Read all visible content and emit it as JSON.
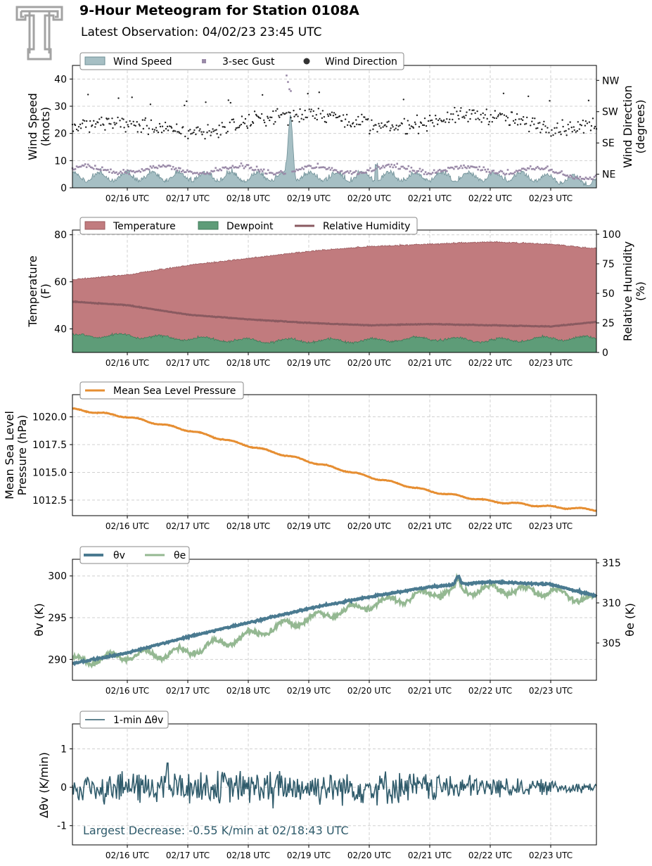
{
  "header": {
    "title": "9-Hour Meteogram for Station 0108A",
    "subtitle": "Latest Observation: 04/02/23 23:45 UTC"
  },
  "logo": {
    "icon": "texas-tech-double-t-logo-icon",
    "color": "#a9a9a9"
  },
  "x_ticks": [
    "02/16 UTC",
    "02/17 UTC",
    "02/18 UTC",
    "02/19 UTC",
    "02/20 UTC",
    "02/21 UTC",
    "02/22 UTC",
    "02/23 UTC"
  ],
  "chart_data": [
    {
      "type": "area",
      "panel": "wind",
      "legend": [
        "Wind Speed",
        "3-sec Gust",
        "Wind Direction"
      ],
      "ylabel": "Wind Speed\n(knots)",
      "ylabel_lines": [
        "Wind Speed",
        "(knots)"
      ],
      "y2label_lines": [
        "Wind Direction",
        "(degrees)"
      ],
      "ylim": [
        0,
        45
      ],
      "yticks": [
        "0",
        "10",
        "20",
        "30",
        "40"
      ],
      "y2ticks": [
        "NE",
        "SE",
        "SW",
        "NW"
      ],
      "colors": {
        "speed": "#a6bfc4",
        "speed_edge": "#6e8f96",
        "gust": "#9a8aa8",
        "direction": "#222222"
      },
      "series": [
        {
          "name": "Wind Speed",
          "summary": {
            "typical": [
              2,
              7
            ],
            "peak": 26,
            "peak_at": "02/18:40 UTC"
          }
        },
        {
          "name": "3-sec Gust",
          "summary": {
            "typical": [
              4,
              8
            ],
            "peak": 43
          }
        },
        {
          "name": "Wind Direction",
          "summary": {
            "range": [
              "NE",
              "NW"
            ],
            "typical": "SE-SW"
          }
        }
      ]
    },
    {
      "type": "area",
      "panel": "temperature",
      "legend": [
        "Temperature",
        "Dewpoint",
        "Relative Humidity"
      ],
      "ylabel_lines": [
        "Temperature",
        "(F)"
      ],
      "y2label_lines": [
        "Relative Humidity",
        "(%)"
      ],
      "ylim": [
        30,
        82
      ],
      "yticks": [
        "40",
        "60",
        "80"
      ],
      "y2ticks": [
        "0",
        "25",
        "50",
        "75",
        "100"
      ],
      "colors": {
        "temperature": "#c17b7e",
        "dewpoint": "#5e9c78",
        "rh": "#8a5a60"
      },
      "series": [
        {
          "name": "Temperature",
          "x": [
            "02/15",
            "02/16",
            "02/17",
            "02/18",
            "02/19",
            "02/20",
            "02/21",
            "02/22",
            "02/23",
            "02/24"
          ],
          "values": [
            61,
            63,
            67,
            70,
            73,
            75,
            76,
            77,
            76,
            74
          ]
        },
        {
          "name": "Dewpoint",
          "x": [
            "02/15",
            "02/16",
            "02/17",
            "02/18",
            "02/19",
            "02/20",
            "02/21",
            "02/22",
            "02/23",
            "02/24"
          ],
          "values": [
            37,
            37,
            36,
            35,
            35,
            35,
            36,
            35,
            36,
            36
          ]
        },
        {
          "name": "Relative Humidity",
          "x": [
            "02/15",
            "02/16",
            "02/17",
            "02/18",
            "02/19",
            "02/20",
            "02/21",
            "02/22",
            "02/23",
            "02/24"
          ],
          "values": [
            43,
            40,
            32,
            28,
            25,
            23,
            24,
            23,
            22,
            26
          ]
        }
      ]
    },
    {
      "type": "line",
      "panel": "pressure",
      "legend": [
        "Mean Sea Level Pressure"
      ],
      "ylabel_lines": [
        "Mean Sea Level",
        "Pressure (hPa)"
      ],
      "ylim": [
        1011.1,
        1022
      ],
      "yticks": [
        "1012.5",
        "1015.0",
        "1017.5",
        "1020.0"
      ],
      "color": "#e68e32",
      "series": [
        {
          "name": "Mean Sea Level Pressure",
          "x": [
            "02/15",
            "02/16",
            "02/17",
            "02/18",
            "02/19",
            "02/20",
            "02/21",
            "02/22",
            "02/23",
            "02/24"
          ],
          "values": [
            1020.7,
            1020.0,
            1018.8,
            1017.4,
            1016.0,
            1014.6,
            1013.3,
            1012.4,
            1011.9,
            1011.6
          ]
        }
      ]
    },
    {
      "type": "line",
      "panel": "theta",
      "legend": [
        "θv",
        "θe"
      ],
      "ylabel_lines": [
        "θv (K)"
      ],
      "y2label_lines": [
        "θe (K)"
      ],
      "ylim": [
        287.5,
        302
      ],
      "yticks": [
        "290",
        "295",
        "300"
      ],
      "y2ticks": [
        "305",
        "310",
        "315"
      ],
      "colors": {
        "theta_v": "#4a7a90",
        "theta_e": "#94b892"
      },
      "series": [
        {
          "name": "θv",
          "x": [
            "02/15",
            "02/16",
            "02/17",
            "02/18",
            "02/19",
            "02/20",
            "02/21",
            "02/22",
            "02/23",
            "02/24"
          ],
          "values": [
            289.5,
            290.8,
            292.7,
            294.4,
            296.1,
            297.5,
            298.7,
            299.3,
            299.0,
            297.5
          ]
        },
        {
          "name": "θe",
          "x": [
            "02/15",
            "02/16",
            "02/17",
            "02/18",
            "02/19",
            "02/20",
            "02/21",
            "02/22",
            "02/23",
            "02/24"
          ],
          "values": [
            289.8,
            290.4,
            290.9,
            292.9,
            294.9,
            296.5,
            297.9,
            298.4,
            298.1,
            296.9
          ]
        }
      ]
    },
    {
      "type": "line",
      "panel": "delta",
      "legend": [
        "1-min Δθv"
      ],
      "ylabel_lines": [
        "Δθv (K/min)"
      ],
      "ylim": [
        -1.5,
        1.65
      ],
      "yticks": [
        "-1",
        "0",
        "1"
      ],
      "color": "#2f5b6b",
      "annotation": "Largest Decrease: -0.55 K/min at 02/18:43 UTC",
      "series": [
        {
          "name": "1-min Δθv",
          "summary": {
            "amplitude_start": 0.5,
            "amplitude_end": 0.15,
            "min": -0.55,
            "max": 0.63
          }
        }
      ]
    }
  ]
}
